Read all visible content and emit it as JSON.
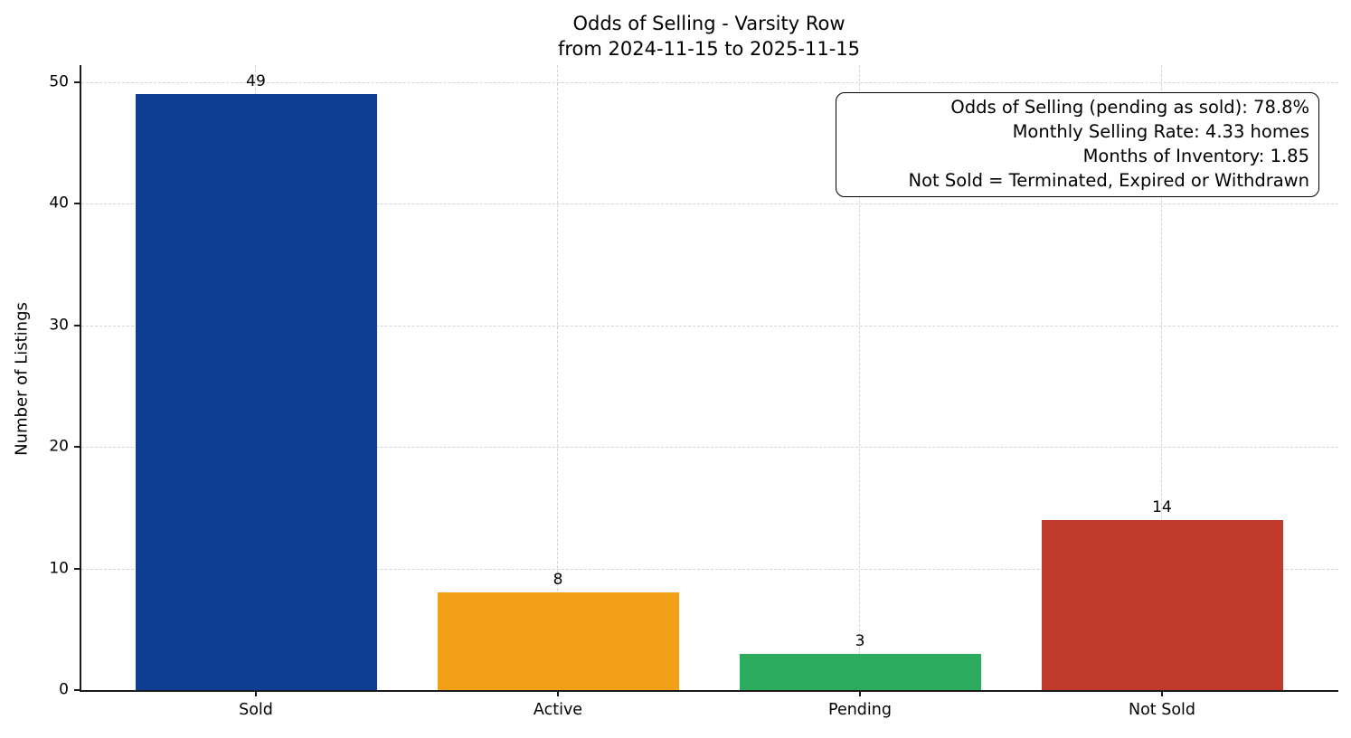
{
  "chart_data": {
    "type": "bar",
    "title": "Odds of Selling - Varsity Row",
    "subtitle": "from 2024-11-15 to 2025-11-15",
    "ylabel": "Number of Listings",
    "xlabel": "",
    "categories": [
      "Sold",
      "Active",
      "Pending",
      "Not Sold"
    ],
    "values": [
      49,
      8,
      3,
      14
    ],
    "value_labels": [
      "49",
      "8",
      "3",
      "14"
    ],
    "bar_colors": [
      "#0e3d94",
      "#f2a117",
      "#2cab5c",
      "#c23a2b"
    ],
    "yticks": [
      0,
      10,
      20,
      30,
      40,
      50
    ],
    "ylim": [
      0,
      51.56
    ],
    "grid": "both, dashed, light-gray",
    "legend": "none",
    "annotation": {
      "lines": [
        "Odds of Selling (pending as sold): 78.8%",
        "Monthly Selling Rate: 4.33 homes",
        "Months of Inventory: 1.85",
        "Not Sold = Terminated, Expired or Withdrawn"
      ]
    }
  }
}
